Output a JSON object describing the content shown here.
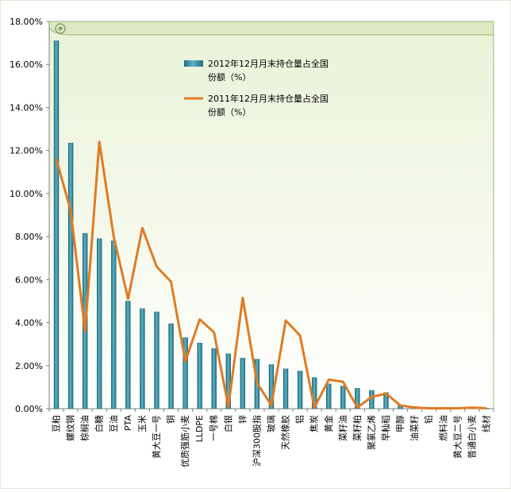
{
  "chart_data": {
    "type": "bar",
    "categories": [
      "豆粕",
      "螺纹钢",
      "棕榈油",
      "白糖",
      "豆油",
      "PTA",
      "玉米",
      "黄大豆一号",
      "铜",
      "优质强筋小麦",
      "LLDPE",
      "一号棉",
      "白银",
      "锌",
      "沪深300股指",
      "玻璃",
      "天然橡胶",
      "铝",
      "焦炭",
      "黄金",
      "菜籽油",
      "菜籽粕",
      "聚氯乙烯",
      "早籼稻",
      "甲醇",
      "油菜籽",
      "铅",
      "燃料油",
      "黄大豆二号",
      "普通白小麦",
      "线材"
    ],
    "ylim": [
      0,
      18
    ],
    "yticks": [
      "0.00%",
      "2.00%",
      "4.00%",
      "6.00%",
      "8.00%",
      "10.00%",
      "12.00%",
      "14.00%",
      "16.00%",
      "18.00%"
    ],
    "grid": false,
    "legend_position": "top-center",
    "series": [
      {
        "name": "2012年12月月末持仓量占全国份额（%）",
        "type": "bar",
        "color": "#2e8a9e",
        "values": [
          17.1,
          12.35,
          8.15,
          7.9,
          7.8,
          5.0,
          4.65,
          4.5,
          3.95,
          3.3,
          3.05,
          2.8,
          2.55,
          2.35,
          2.3,
          2.05,
          1.85,
          1.75,
          1.45,
          1.15,
          1.05,
          0.95,
          0.85,
          0.75,
          0.15,
          0.1,
          0.05,
          0.05,
          0.05,
          0.05,
          0.02
        ]
      },
      {
        "name": "2011年12月月末持仓量占全国份额（%）",
        "type": "line",
        "color": "#e07b22",
        "values": [
          11.6,
          9.2,
          3.6,
          12.4,
          8.0,
          5.1,
          8.4,
          6.6,
          5.9,
          2.2,
          4.15,
          3.55,
          0.1,
          5.15,
          1.2,
          0.15,
          4.1,
          3.4,
          0.05,
          1.35,
          1.25,
          0.05,
          0.55,
          0.7,
          0.15,
          0.05,
          0.02,
          0.02,
          0.02,
          0.05,
          0.02
        ]
      }
    ]
  }
}
